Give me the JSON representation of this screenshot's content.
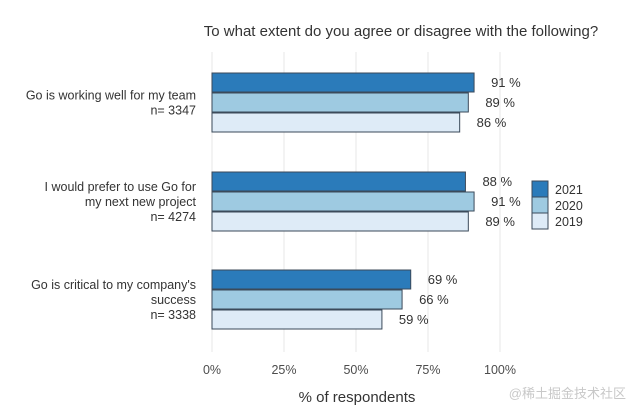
{
  "chart_data": {
    "type": "bar",
    "orientation": "horizontal",
    "title": "To what extent do you agree or disagree with the following?",
    "xlabel": "% of respondents",
    "ylabel": "",
    "xlim": [
      0,
      100
    ],
    "xticks": [
      0,
      25,
      50,
      75,
      100
    ],
    "xtick_labels": [
      "0%",
      "25%",
      "50%",
      "75%",
      "100%"
    ],
    "grid": "vertical",
    "legend_position": "right",
    "categories": [
      {
        "lines": [
          "Go is working well for my team",
          "n= 3347"
        ]
      },
      {
        "lines": [
          "I would prefer to use Go for",
          "my next new project",
          "n= 4274"
        ]
      },
      {
        "lines": [
          "Go is critical to my company's",
          "success",
          "n= 3338"
        ]
      }
    ],
    "series": [
      {
        "name": "2021",
        "color": "#2b7bba",
        "values": [
          91,
          88,
          69
        ]
      },
      {
        "name": "2020",
        "color": "#9ecae1",
        "values": [
          89,
          91,
          66
        ]
      },
      {
        "name": "2019",
        "color": "#deebf7",
        "values": [
          86,
          89,
          59
        ]
      }
    ],
    "value_suffix": " %"
  },
  "watermark": "@稀土掘金技术社区"
}
